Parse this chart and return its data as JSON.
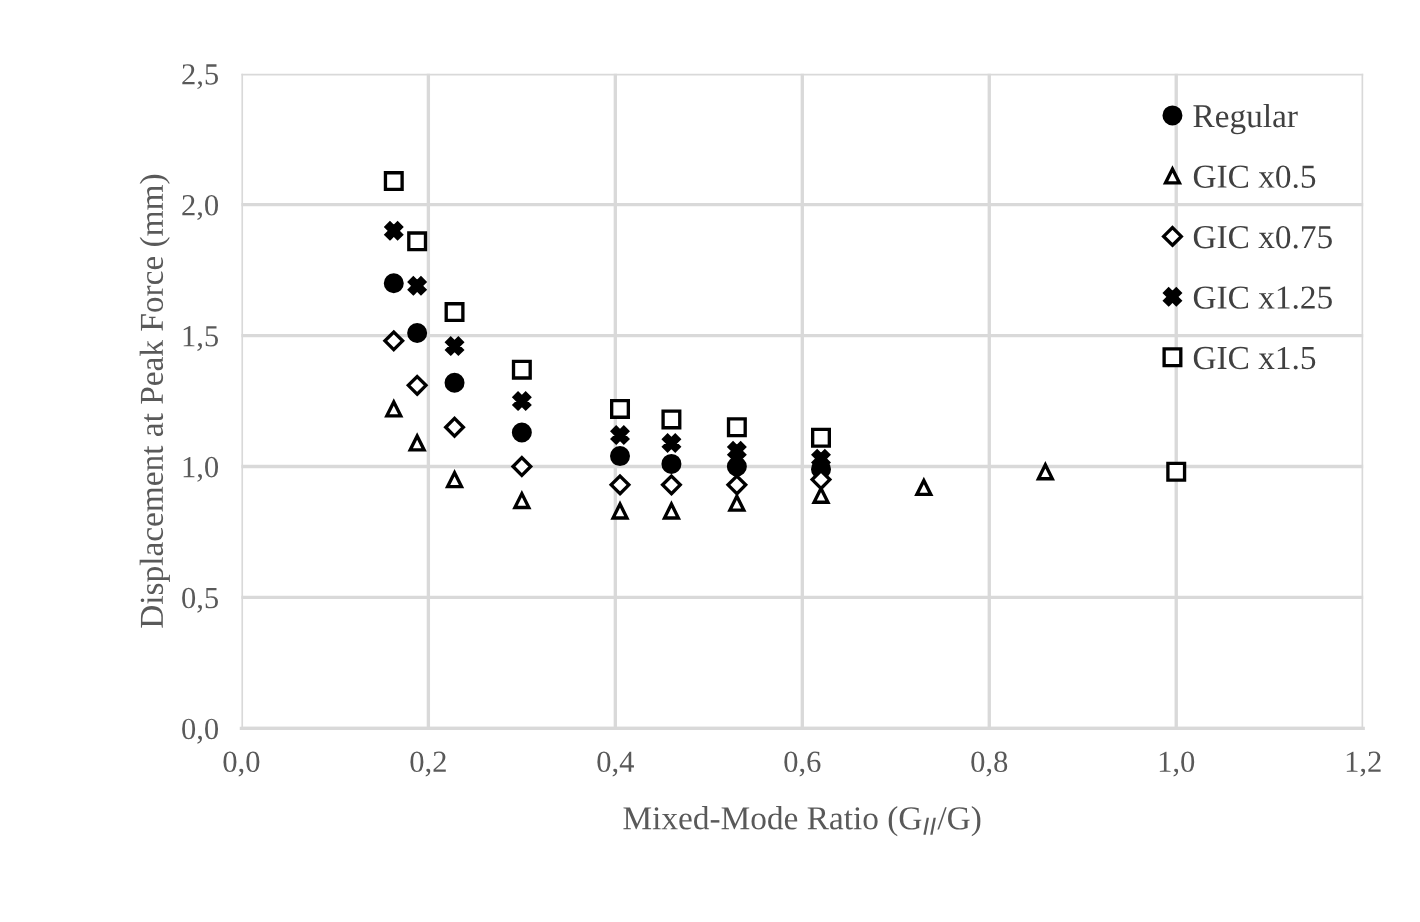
{
  "chart_data": {
    "type": "scatter",
    "xlabel": "Mixed-Mode Ratio (G$_{II}$/G)",
    "ylabel": "Displacement at Peak Force (mm)",
    "x": [
      0.163,
      0.188,
      0.228,
      0.3,
      0.405,
      0.46,
      0.53,
      0.62,
      0.73,
      0.86,
      1.0
    ],
    "series": [
      {
        "name": "Regular",
        "color": "#000000",
        "marker": "circle",
        "values": [
          1.7,
          1.51,
          1.32,
          1.13,
          1.04,
          1.01,
          1.0,
          0.99,
          null,
          null,
          null
        ]
      },
      {
        "name": "GIC x0.5",
        "color": "#000000",
        "marker": "triangle",
        "values": [
          1.22,
          1.09,
          0.95,
          0.87,
          0.83,
          0.83,
          0.86,
          0.89,
          0.92,
          0.98,
          null
        ]
      },
      {
        "name": "GIC x0.75",
        "color": "#000000",
        "marker": "diamond",
        "values": [
          1.48,
          1.31,
          1.15,
          1.0,
          0.93,
          0.93,
          0.93,
          0.95,
          null,
          null,
          null
        ]
      },
      {
        "name": "GIC x1.25",
        "color": "#000000",
        "marker": "cross",
        "values": [
          1.9,
          1.69,
          1.46,
          1.25,
          1.12,
          1.09,
          1.06,
          1.03,
          null,
          null,
          null
        ]
      },
      {
        "name": "GIC x1.5",
        "color": "#000000",
        "marker": "square",
        "values": [
          2.09,
          1.86,
          1.59,
          1.37,
          1.22,
          1.18,
          1.15,
          1.11,
          null,
          null,
          0.98
        ]
      }
    ],
    "xlim": [
      0,
      1.2
    ],
    "ylim": [
      0,
      2.5
    ],
    "xticks": [
      {
        "value": 0,
        "label": "0,0"
      },
      {
        "value": 0.2,
        "label": "0,2"
      },
      {
        "value": 0.4,
        "label": "0,4"
      },
      {
        "value": 0.6,
        "label": "0,6"
      },
      {
        "value": 0.8,
        "label": "0,8"
      },
      {
        "value": 1.0,
        "label": "1,0"
      },
      {
        "value": 1.2,
        "label": "1,2"
      }
    ],
    "yticks": [
      {
        "value": 0,
        "label": "0,0"
      },
      {
        "value": 0.5,
        "label": "0,5"
      },
      {
        "value": 1.0,
        "label": "1,0"
      },
      {
        "value": 1.5,
        "label": "1,5"
      },
      {
        "value": 2.0,
        "label": "2,0"
      },
      {
        "value": 2.5,
        "label": "2,5"
      }
    ],
    "grid": true,
    "legend": "top right"
  }
}
